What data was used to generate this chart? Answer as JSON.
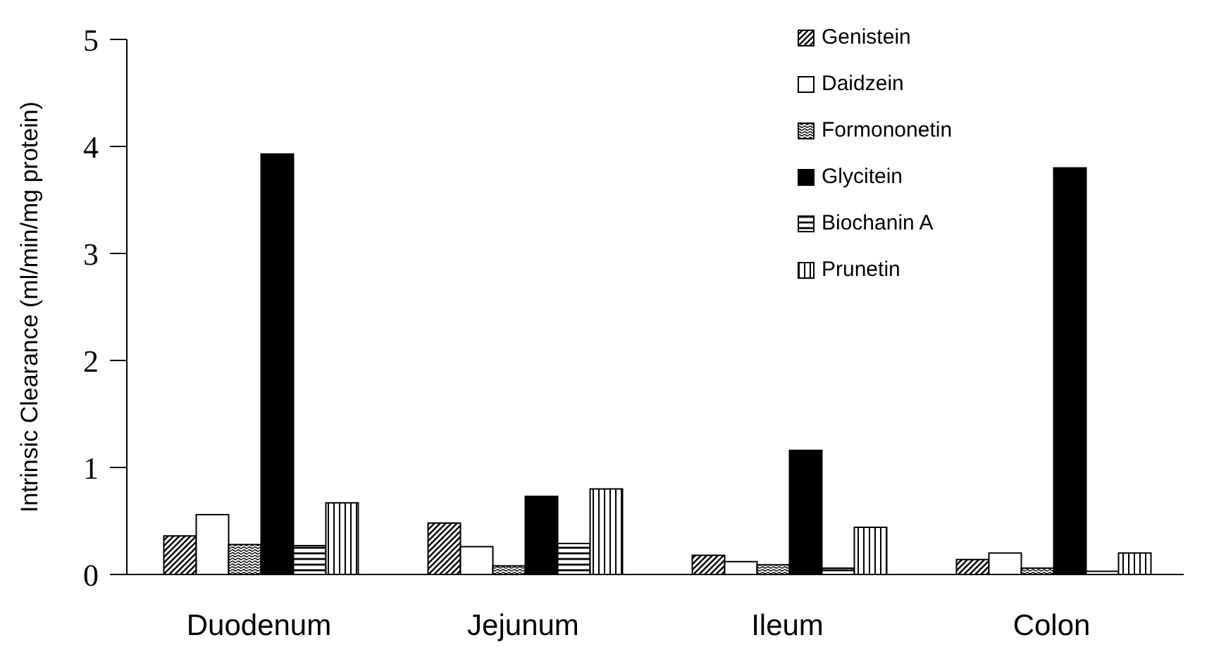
{
  "chart_data": {
    "type": "bar",
    "ylabel": "Intrinsic Clearance (ml/min/mg protein)",
    "categories": [
      "Duodenum",
      "Jejunum",
      "Ileum",
      "Colon"
    ],
    "series": [
      {
        "name": "Genistein",
        "color": "#000000",
        "values": [
          0.36,
          0.48,
          0.18,
          0.14
        ]
      },
      {
        "name": "Daidzein",
        "color": "#ffffff",
        "values": [
          0.56,
          0.26,
          0.12,
          0.2
        ]
      },
      {
        "name": "Formononetin",
        "color": "#000000",
        "values": [
          0.28,
          0.08,
          0.09,
          0.06
        ]
      },
      {
        "name": "Glycitein",
        "color": "#000000",
        "values": [
          3.93,
          0.73,
          1.16,
          3.8
        ]
      },
      {
        "name": "Biochanin A",
        "color": "#000000",
        "values": [
          0.27,
          0.29,
          0.06,
          0.03
        ]
      },
      {
        "name": "Prunetin",
        "color": "#000000",
        "values": [
          0.67,
          0.8,
          0.44,
          0.2
        ]
      }
    ],
    "ylim": [
      0,
      5
    ],
    "yticks": [
      0,
      1,
      2,
      3,
      4,
      5
    ],
    "grid": false,
    "legend": "top right"
  }
}
